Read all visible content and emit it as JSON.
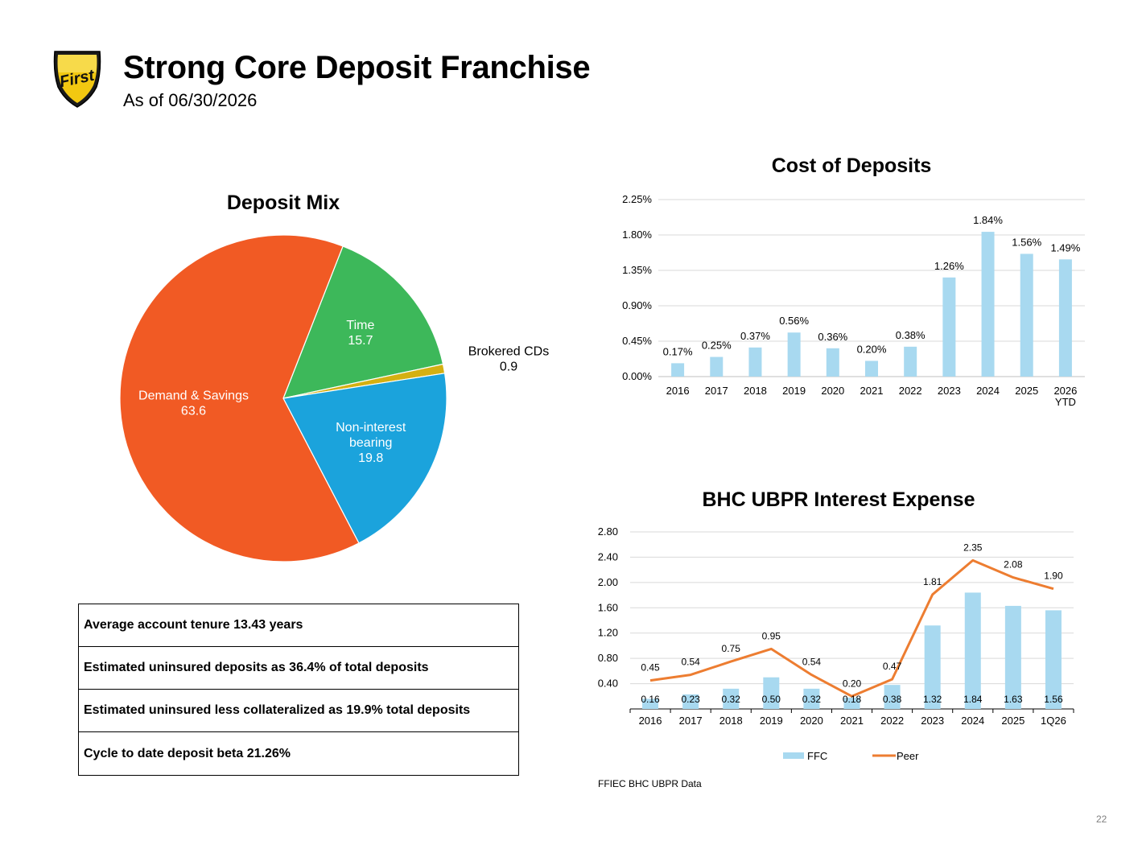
{
  "header": {
    "title": "Strong Core Deposit Franchise",
    "subtitle": "As of 06/30/2026",
    "logo_text": "First"
  },
  "colors": {
    "demand_savings": "#F15A24",
    "time": "#3DB85A",
    "brokered": "#D4B012",
    "non_interest": "#1BA3DC",
    "bar_light": "#A8D9F0",
    "peer_line": "#ED7D31",
    "grid": "#D9D9D9"
  },
  "chart_data": [
    {
      "id": "deposit_mix",
      "type": "pie",
      "title": "Deposit Mix",
      "slices": [
        {
          "label": "Time",
          "value": 15.7,
          "value_text": "15.7"
        },
        {
          "label": "Brokered CDs",
          "value": 0.9,
          "value_text": "0.9"
        },
        {
          "label": "Non-interest bearing",
          "value": 19.8,
          "value_text": "19.8"
        },
        {
          "label": "Demand & Savings",
          "value": 63.6,
          "value_text": "63.6"
        }
      ]
    },
    {
      "id": "cost_of_deposits",
      "type": "bar",
      "title": "Cost of Deposits",
      "categories": [
        "2016",
        "2017",
        "2018",
        "2019",
        "2020",
        "2021",
        "2022",
        "2023",
        "2024",
        "2025",
        "2026 YTD"
      ],
      "values": [
        0.17,
        0.25,
        0.37,
        0.56,
        0.36,
        0.2,
        0.38,
        1.26,
        1.84,
        1.56,
        1.49
      ],
      "value_labels": [
        "0.17%",
        "0.25%",
        "0.37%",
        "0.56%",
        "0.36%",
        "0.20%",
        "0.38%",
        "1.26%",
        "1.84%",
        "1.56%",
        "1.49%"
      ],
      "ylim": [
        0,
        2.25
      ],
      "yticks": [
        "0.00%",
        "0.45%",
        "0.90%",
        "1.35%",
        "1.80%",
        "2.25%"
      ],
      "grid": true
    },
    {
      "id": "bhc_ubpr_interest_expense",
      "type": "bar",
      "title": "BHC UBPR Interest Expense",
      "categories": [
        "2016",
        "2017",
        "2018",
        "2019",
        "2020",
        "2021",
        "2022",
        "2023",
        "2024",
        "2025",
        "1Q26"
      ],
      "series": [
        {
          "name": "FFC",
          "type": "bar",
          "values": [
            0.16,
            0.23,
            0.32,
            0.5,
            0.32,
            0.18,
            0.38,
            1.32,
            1.84,
            1.63,
            1.56
          ],
          "labels": [
            "0.16",
            "0.23",
            "0.32",
            "0.50",
            "0.32",
            "0.18",
            "0.38",
            "1.32",
            "1.84",
            "1.63",
            "1.56"
          ]
        },
        {
          "name": "Peer",
          "type": "line",
          "values": [
            0.45,
            0.54,
            0.75,
            0.95,
            0.54,
            0.2,
            0.47,
            1.81,
            2.35,
            2.08,
            1.9
          ],
          "labels": [
            "0.45",
            "0.54",
            "0.75",
            "0.95",
            "0.54",
            "0.20",
            "0.47",
            "1.81",
            "2.35",
            "2.08",
            "1.90"
          ]
        }
      ],
      "ylim": [
        0,
        2.8
      ],
      "yticks": [
        "0.40",
        "0.80",
        "1.20",
        "1.60",
        "2.00",
        "2.40",
        "2.80"
      ],
      "legend": "bottom",
      "grid": true
    }
  ],
  "stats": [
    "Average account tenure 13.43 years",
    "Estimated uninsured deposits as 36.4% of total deposits",
    "Estimated uninsured less collateralized as 19.9% total deposits",
    "Cycle to date deposit beta 21.26%"
  ],
  "footer": {
    "source": "FFIEC BHC UBPR Data",
    "page_number": "22"
  }
}
